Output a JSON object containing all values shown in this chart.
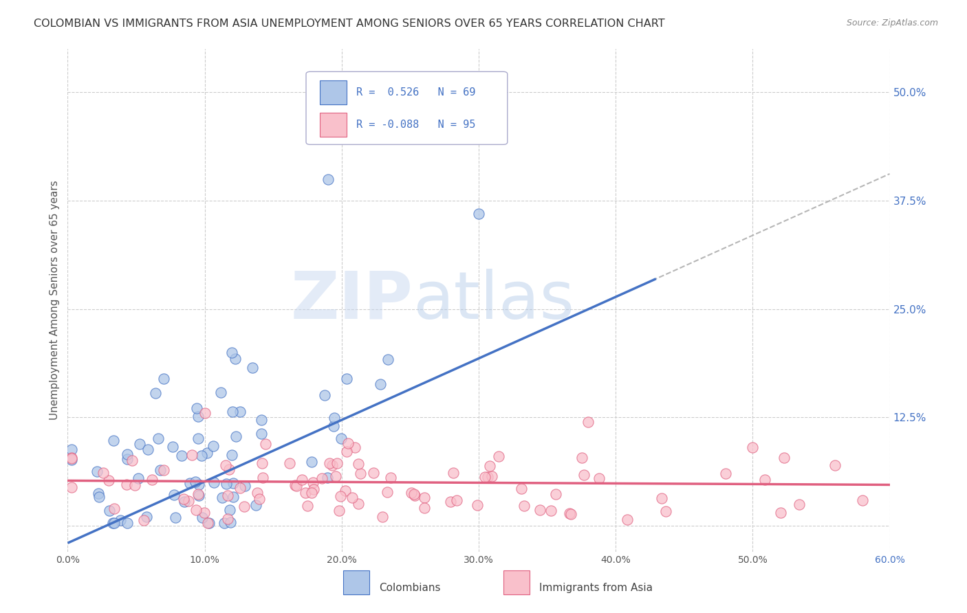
{
  "title": "COLOMBIAN VS IMMIGRANTS FROM ASIA UNEMPLOYMENT AMONG SENIORS OVER 65 YEARS CORRELATION CHART",
  "source": "Source: ZipAtlas.com",
  "ylabel": "Unemployment Among Seniors over 65 years",
  "xlim": [
    0.0,
    0.6
  ],
  "ylim": [
    -0.03,
    0.55
  ],
  "yticks": [
    0.0,
    0.125,
    0.25,
    0.375,
    0.5
  ],
  "yticklabels": [
    "",
    "12.5%",
    "25.0%",
    "37.5%",
    "50.0%"
  ],
  "xticks": [
    0.0,
    0.1,
    0.2,
    0.3,
    0.4,
    0.5,
    0.6
  ],
  "xticklabels": [
    "0.0%",
    "10.0%",
    "20.0%",
    "30.0%",
    "40.0%",
    "50.0%",
    "60.0%"
  ],
  "background_color": "#ffffff",
  "grid_color": "#cccccc",
  "colombian_color": "#aec6e8",
  "colombian_color_dark": "#4472c4",
  "asian_color": "#f9c0cb",
  "asian_color_dark": "#e06080",
  "R_colombian": 0.526,
  "N_colombian": 69,
  "R_asian": -0.088,
  "N_asian": 95,
  "watermark_zip": "ZIP",
  "watermark_atlas": "atlas",
  "watermark_zip_color": "#c8d8ec",
  "watermark_atlas_color": "#b0c4de",
  "legend_title_col": "R =  0.526   N = 69",
  "legend_title_asi": "R = -0.088   N = 95",
  "legend_color": "#4472c4",
  "bottom_legend_col": "Colombians",
  "bottom_legend_asi": "Immigrants from Asia"
}
